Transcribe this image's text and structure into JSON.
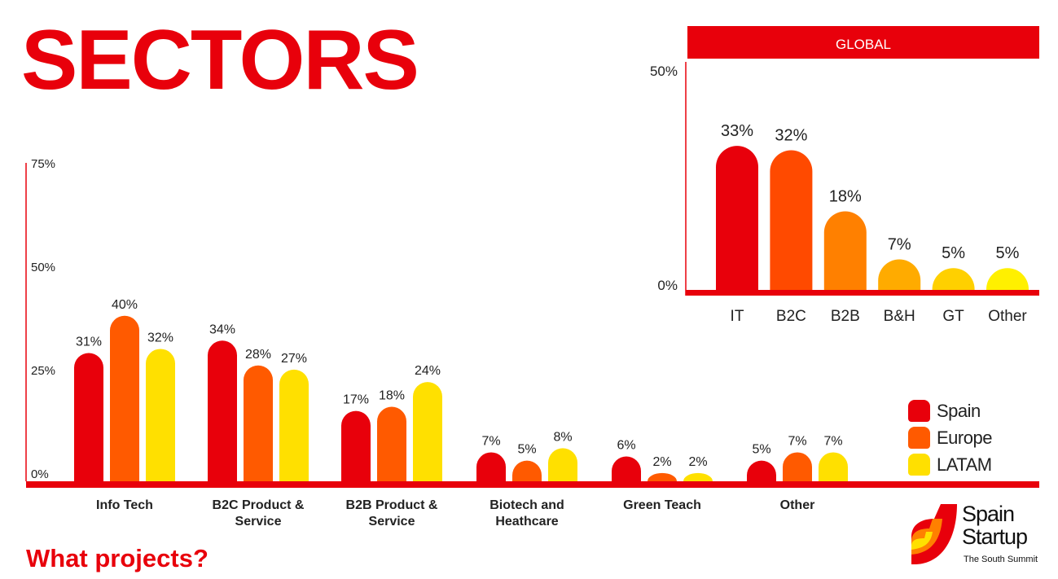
{
  "page": {
    "title": "SECTORS",
    "subtitle": "What projects?"
  },
  "legend": [
    {
      "label": "Spain",
      "color": "#e8000b"
    },
    {
      "label": "Europe",
      "color": "#ff5a00"
    },
    {
      "label": "LATAM",
      "color": "#ffe000"
    }
  ],
  "logo": {
    "line1": "Spain",
    "line2": "Startup",
    "tagline": "The South Summit"
  },
  "chart_data": [
    {
      "type": "bar",
      "categories": [
        "Info Tech",
        "B2C Product & Service",
        "B2B Product & Service",
        "Biotech and Heathcare",
        "Green Teach",
        "Other"
      ],
      "series": [
        {
          "name": "Spain",
          "color": "#e8000b",
          "values": [
            31,
            34,
            17,
            7,
            6,
            5
          ]
        },
        {
          "name": "Europe",
          "color": "#ff5a00",
          "values": [
            40,
            28,
            18,
            5,
            2,
            7
          ]
        },
        {
          "name": "LATAM",
          "color": "#ffe000",
          "values": [
            32,
            27,
            24,
            8,
            2,
            7
          ]
        }
      ],
      "ylim": [
        0,
        75
      ],
      "yticks": [
        "0%",
        "25%",
        "50%",
        "75%"
      ],
      "value_labels": [
        [
          "31%",
          "40%",
          "32%"
        ],
        [
          "34%",
          "28%",
          "27%"
        ],
        [
          "17%",
          "18%",
          "24%"
        ],
        [
          "7%",
          "5%",
          "8%"
        ],
        [
          "6%",
          "2%",
          "2%"
        ],
        [
          "5%",
          "7%",
          "7%"
        ]
      ],
      "legend_position": "right",
      "axis_color": "#e8000b"
    },
    {
      "type": "bar",
      "title": "GLOBAL",
      "categories": [
        "IT",
        "B2C",
        "B2B",
        "B&H",
        "GT",
        "Other"
      ],
      "values": [
        33,
        32,
        18,
        7,
        5,
        5
      ],
      "value_labels": [
        "33%",
        "32%",
        "18%",
        "7%",
        "5%",
        "5%"
      ],
      "colors": [
        "#e8000b",
        "#ff4a00",
        "#ff8000",
        "#ffab00",
        "#ffd000",
        "#fff000"
      ],
      "ylim": [
        0,
        50
      ],
      "yticks": [
        "0%",
        "50%"
      ]
    }
  ]
}
